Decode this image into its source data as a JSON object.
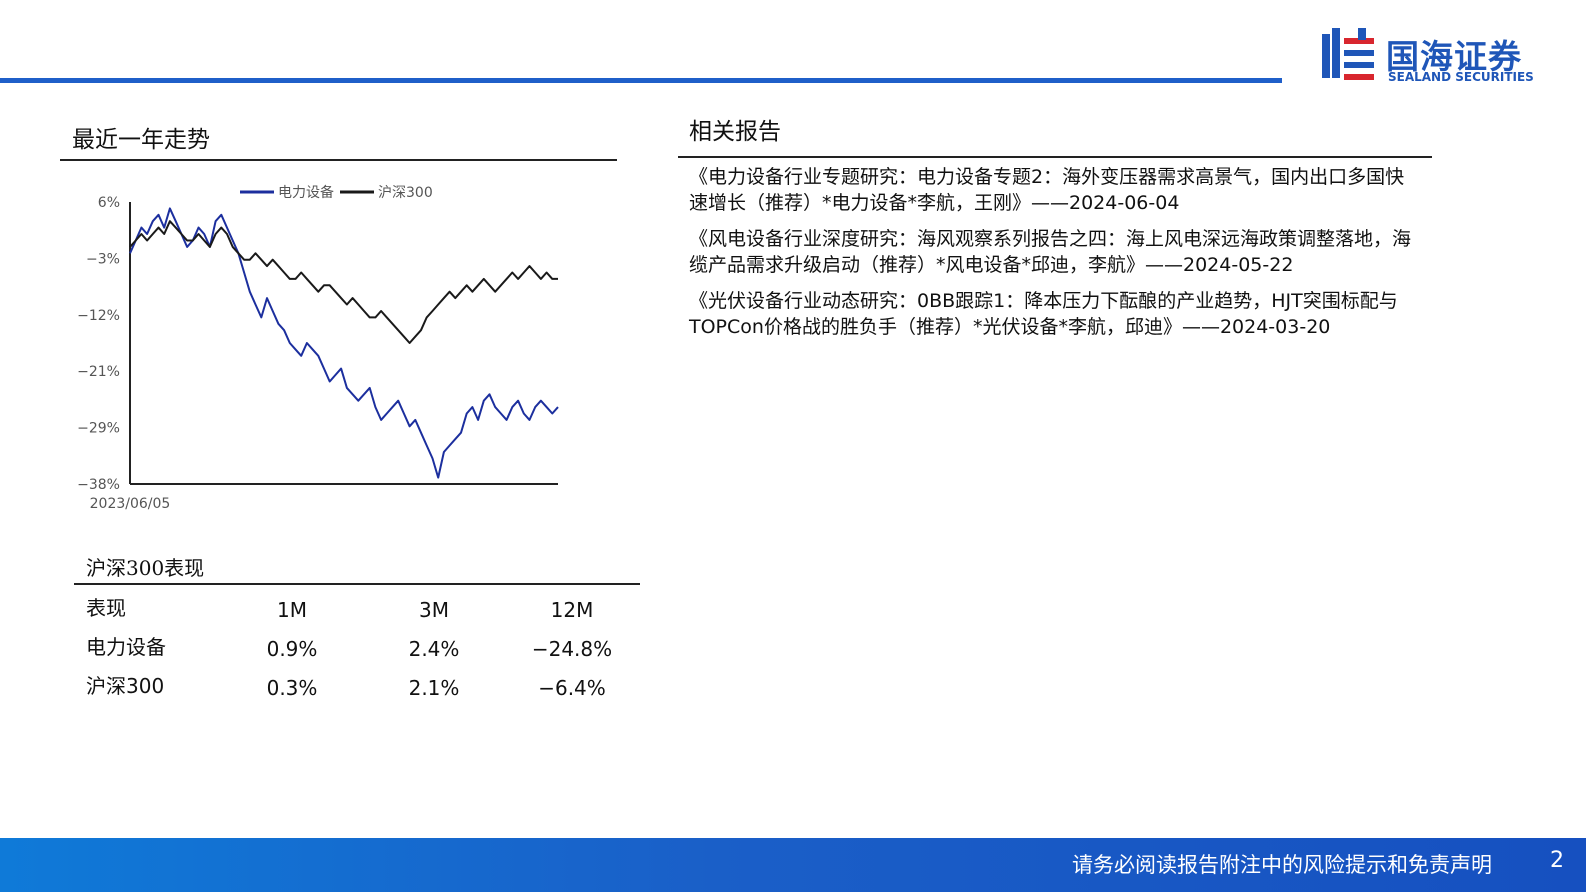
{
  "brand": {
    "name_cn": "国海证券",
    "name_en": "SEALAND SECURITIES",
    "color": "#1f5fc9"
  },
  "trend": {
    "title": "最近一年走势"
  },
  "chart_data": {
    "type": "line",
    "title": "",
    "x_start_label": "2023/06/05",
    "y_ticks": [
      "6%",
      "−3%",
      "−12%",
      "−21%",
      "−29%",
      "−38%"
    ],
    "ylim": [
      -38,
      6
    ],
    "legend": [
      "电力设备",
      "沪深300"
    ],
    "legend_position": "top-center",
    "series": [
      {
        "name": "电力设备",
        "color": "#1c2f9e",
        "values": [
          -2,
          0,
          2,
          1,
          3,
          4,
          2,
          5,
          3,
          1,
          -1,
          0,
          2,
          1,
          -1,
          3,
          4,
          2,
          0,
          -2,
          -5,
          -8,
          -10,
          -12,
          -9,
          -11,
          -13,
          -14,
          -16,
          -17,
          -18,
          -16,
          -17,
          -18,
          -20,
          -22,
          -21,
          -20,
          -23,
          -24,
          -25,
          -24,
          -23,
          -26,
          -28,
          -27,
          -26,
          -25,
          -27,
          -29,
          -28,
          -30,
          -32,
          -34,
          -37,
          -33,
          -32,
          -31,
          -30,
          -27,
          -26,
          -28,
          -25,
          -24,
          -26,
          -27,
          -28,
          -26,
          -25,
          -27,
          -28,
          -26,
          -25,
          -26,
          -27,
          -26
        ]
      },
      {
        "name": "沪深300",
        "color": "#1a1a1a",
        "values": [
          -1,
          0,
          1,
          0,
          1,
          2,
          1,
          3,
          2,
          1,
          0,
          0,
          1,
          0,
          -1,
          1,
          2,
          1,
          -1,
          -2,
          -3,
          -3,
          -2,
          -3,
          -4,
          -3,
          -4,
          -5,
          -6,
          -6,
          -5,
          -6,
          -7,
          -8,
          -7,
          -7,
          -8,
          -9,
          -10,
          -9,
          -10,
          -11,
          -12,
          -12,
          -11,
          -12,
          -13,
          -14,
          -15,
          -16,
          -15,
          -14,
          -12,
          -11,
          -10,
          -9,
          -8,
          -9,
          -8,
          -7,
          -8,
          -7,
          -6,
          -7,
          -8,
          -7,
          -6,
          -5,
          -6,
          -5,
          -4,
          -5,
          -6,
          -5,
          -6,
          -6
        ]
      }
    ]
  },
  "performance": {
    "title": "沪深300表现",
    "headers": [
      "表现",
      "1M",
      "3M",
      "12M"
    ],
    "rows": [
      [
        "电力设备",
        "0.9%",
        "2.4%",
        "−24.8%"
      ],
      [
        "沪深300",
        "0.3%",
        "2.1%",
        "−6.4%"
      ]
    ]
  },
  "related": {
    "title": "相关报告",
    "items": [
      "《电力设备行业专题研究：电力设备专题2：海外变压器需求高景气，国内出口多国快速增长（推荐）*电力设备*李航，王刚》——2024-06-04",
      "《风电设备行业深度研究：海风观察系列报告之四：海上风电深远海政策调整落地，海缆产品需求升级启动（推荐）*风电设备*邱迪，李航》——2024-05-22",
      "《光伏设备行业动态研究：0BB跟踪1：降本压力下酝酿的产业趋势，HJT突围标配与TOPCon价格战的胜负手（推荐）*光伏设备*李航，邱迪》——2024-03-20"
    ]
  },
  "footer": {
    "disclaimer": "请务必阅读报告附注中的风险提示和免责声明",
    "page": "2"
  }
}
